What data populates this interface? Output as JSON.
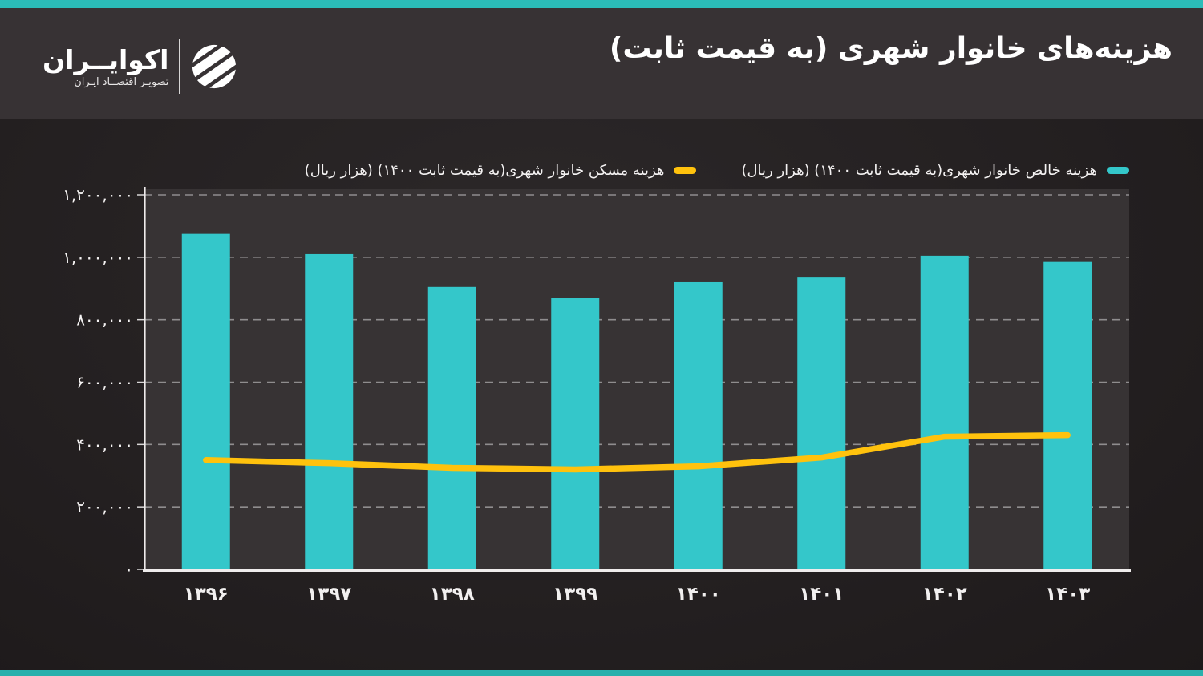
{
  "header": {
    "title": "هزینه‌های خانوار شهری (به قیمت ثابت)",
    "logo": {
      "name": "اکوایــران",
      "tagline": "تصویـر اقتصــاد ایـران"
    }
  },
  "colors": {
    "accent_teal": "#34c7ca",
    "accent_yellow": "#ffc20d",
    "strip_teal": "#2bbcb8",
    "header_bg": "#373234",
    "body_bg": "#242021",
    "plot_bg": "#373334",
    "gridline": "#8f8d8e",
    "axis": "#efecec",
    "tick_text": "#f7f5f5"
  },
  "legend": [
    {
      "label": "هزینه خالص خانوار شهری(به قیمت ثابت ۱۴۰۰) (هزار ریال)",
      "color": "#34c7ca",
      "series": "bars"
    },
    {
      "label": "هزینه مسکن خانوار شهری(به قیمت ثابت ۱۴۰۰) (هزار ریال)",
      "color": "#ffc20d",
      "series": "line"
    }
  ],
  "chart_data": {
    "type": "bar",
    "title": "هزینه‌های خانوار شهری (به قیمت ثابت)",
    "categories": [
      "۱۳۹۶",
      "۱۳۹۷",
      "۱۳۹۸",
      "۱۳۹۹",
      "۱۴۰۰",
      "۱۴۰۱",
      "۱۴۰۲",
      "۱۴۰۳"
    ],
    "categories_latin": [
      "1396",
      "1397",
      "1398",
      "1399",
      "1400",
      "1401",
      "1402",
      "1403"
    ],
    "series": [
      {
        "name": "هزینه خالص خانوار شهری(به قیمت ثابت ۱۴۰۰) (هزار ریال)",
        "type": "bar",
        "color": "#34c7ca",
        "values": [
          1075000,
          1010000,
          905000,
          870000,
          920000,
          935000,
          1005000,
          985000
        ]
      },
      {
        "name": "هزینه مسکن خانوار شهری(به قیمت ثابت ۱۴۰۰) (هزار ریال)",
        "type": "line",
        "color": "#ffc20d",
        "values": [
          350000,
          340000,
          325000,
          320000,
          330000,
          358000,
          425000,
          430000
        ]
      }
    ],
    "xlabel": "",
    "ylabel": "",
    "ylim": [
      0,
      1200000
    ],
    "ytick_step": 200000,
    "yticks": [
      {
        "value": 0,
        "label": "۰"
      },
      {
        "value": 200000,
        "label": "۲۰۰,۰۰۰"
      },
      {
        "value": 400000,
        "label": "۴۰۰,۰۰۰"
      },
      {
        "value": 600000,
        "label": "۶۰۰,۰۰۰"
      },
      {
        "value": 800000,
        "label": "۸۰۰,۰۰۰"
      },
      {
        "value": 1000000,
        "label": "۱,۰۰۰,۰۰۰"
      },
      {
        "value": 1200000,
        "label": "۱,۲۰۰,۰۰۰"
      }
    ],
    "grid": "horizontal-dashed",
    "legend_position": "top-right"
  }
}
